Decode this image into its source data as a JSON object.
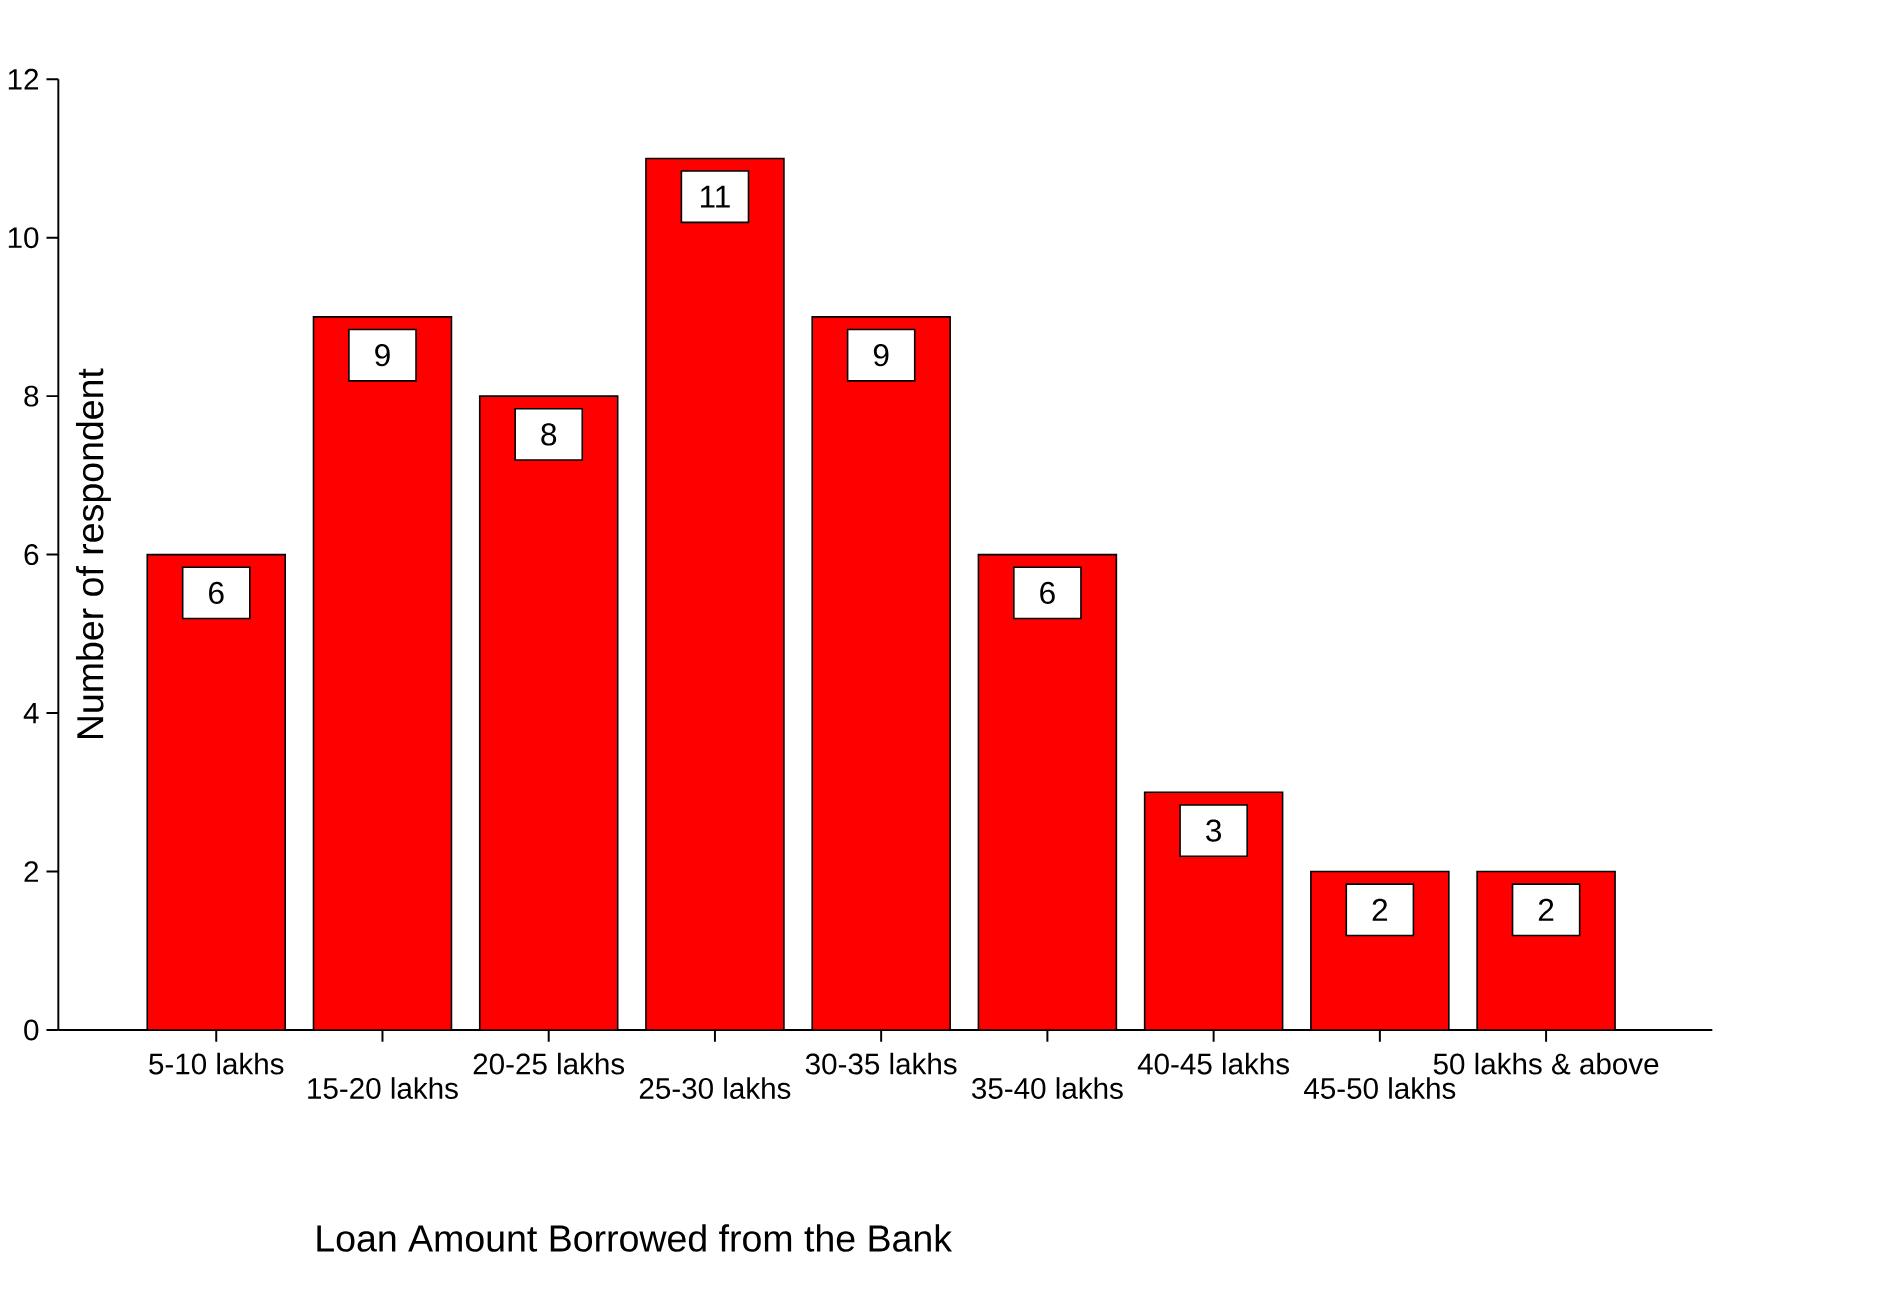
{
  "chart_data": {
    "type": "bar",
    "xlabel": "Loan Amount Borrowed from the Bank",
    "ylabel": "Number of respondent",
    "categories": [
      "5-10 lakhs",
      "15-20 lakhs",
      "20-25 lakhs",
      "25-30 lakhs",
      "30-35 lakhs",
      "35-40 lakhs",
      "40-45 lakhs",
      "45-50 lakhs",
      "50 lakhs & above"
    ],
    "values": [
      6,
      9,
      8,
      11,
      9,
      6,
      3,
      2,
      2
    ],
    "color": "#ff0000",
    "ylim": [
      0,
      12
    ],
    "yticks": [
      0,
      2,
      4,
      6,
      8,
      10,
      12
    ],
    "data_labels": true
  }
}
